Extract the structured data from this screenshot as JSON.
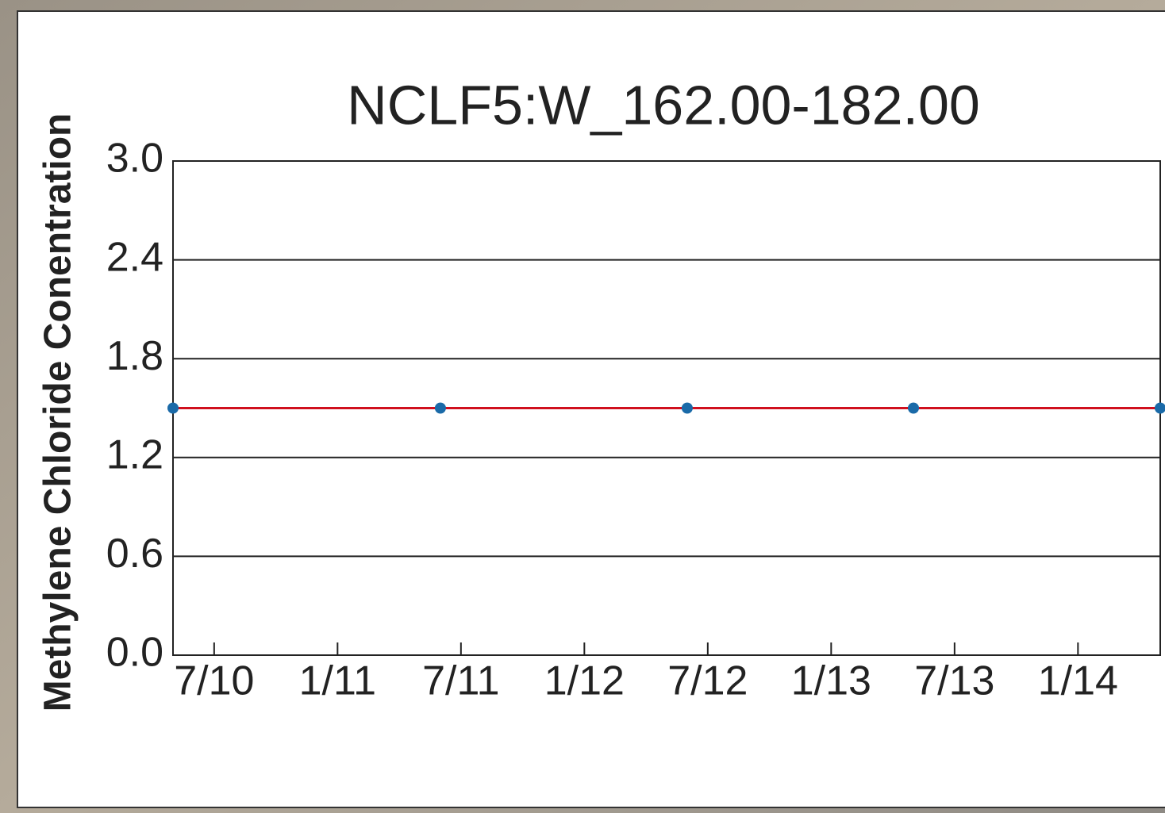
{
  "chart_data": {
    "type": "line",
    "title": "NCLF5:W_162.00-182.00",
    "y_label": "Methylene Chloride Conentration",
    "x": [
      "2010-05",
      "2011-06",
      "2012-06",
      "2013-05",
      "2014-05"
    ],
    "values": [
      1.5,
      1.5,
      1.5,
      1.5,
      1.5
    ],
    "line_color": "#d0101e",
    "marker_color": "#1a6aa8",
    "xlim": [
      "2010-05",
      "2014-05"
    ],
    "xticks": [
      {
        "value": "2010-07",
        "label": "7/10"
      },
      {
        "value": "2011-01",
        "label": "1/11"
      },
      {
        "value": "2011-07",
        "label": "7/11"
      },
      {
        "value": "2012-01",
        "label": "1/12"
      },
      {
        "value": "2012-07",
        "label": "7/12"
      },
      {
        "value": "2013-01",
        "label": "1/13"
      },
      {
        "value": "2013-07",
        "label": "7/13"
      },
      {
        "value": "2014-01",
        "label": "1/14"
      }
    ],
    "ylim": [
      0,
      3
    ],
    "yticks": [
      {
        "value": 0,
        "label": "0.0"
      },
      0.6,
      1.2,
      1.8,
      2.4,
      {
        "value": 3,
        "label": "3.0"
      }
    ],
    "grid": true
  }
}
